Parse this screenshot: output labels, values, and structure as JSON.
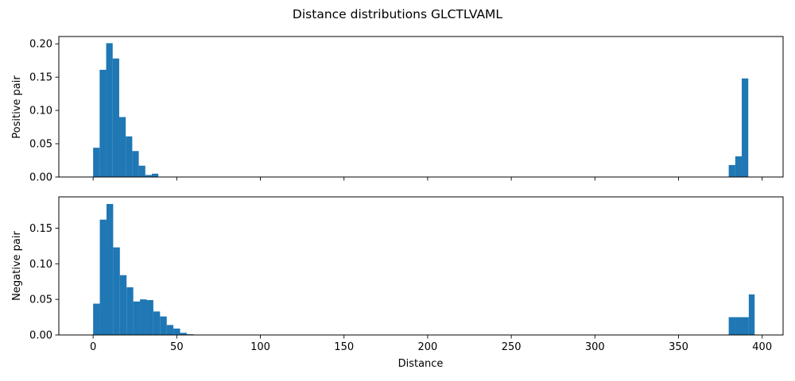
{
  "figure": {
    "title": "Distance distributions GLCTLVAML"
  },
  "chart_data": [
    {
      "type": "bar",
      "title": "",
      "xlabel": "",
      "ylabel": "Positive pair",
      "xlim": [
        -20.5,
        412.5
      ],
      "ylim": [
        0,
        0.211
      ],
      "xticks": [
        0,
        50,
        100,
        150,
        200,
        250,
        300,
        350,
        400
      ],
      "xtick_labels_visible": false,
      "yticks": [
        0.0,
        0.05,
        0.1,
        0.15,
        0.2
      ],
      "ytick_labels": [
        "0.00",
        "0.05",
        "0.10",
        "0.15",
        "0.20"
      ],
      "color": "#1f77b4",
      "bins": [
        {
          "x0": 0.0,
          "x1": 3.9,
          "value": 0.044
        },
        {
          "x0": 3.9,
          "x1": 7.8,
          "value": 0.161
        },
        {
          "x0": 7.8,
          "x1": 11.7,
          "value": 0.201
        },
        {
          "x0": 11.7,
          "x1": 15.6,
          "value": 0.178
        },
        {
          "x0": 15.6,
          "x1": 19.5,
          "value": 0.09
        },
        {
          "x0": 19.5,
          "x1": 23.4,
          "value": 0.061
        },
        {
          "x0": 23.4,
          "x1": 27.3,
          "value": 0.039
        },
        {
          "x0": 27.3,
          "x1": 31.2,
          "value": 0.017
        },
        {
          "x0": 31.2,
          "x1": 35.1,
          "value": 0.003
        },
        {
          "x0": 35.1,
          "x1": 39.0,
          "value": 0.005
        },
        {
          "x0": 380.0,
          "x1": 383.9,
          "value": 0.018
        },
        {
          "x0": 383.9,
          "x1": 387.8,
          "value": 0.031
        },
        {
          "x0": 387.8,
          "x1": 391.7,
          "value": 0.148
        }
      ]
    },
    {
      "type": "bar",
      "title": "",
      "xlabel": "Distance",
      "ylabel": "Negative pair",
      "xlim": [
        -20.5,
        412.5
      ],
      "ylim": [
        0,
        0.194
      ],
      "xticks": [
        0,
        50,
        100,
        150,
        200,
        250,
        300,
        350,
        400
      ],
      "xtick_labels": [
        "0",
        "50",
        "100",
        "150",
        "200",
        "250",
        "300",
        "350",
        "400"
      ],
      "yticks": [
        0.0,
        0.05,
        0.1,
        0.15
      ],
      "ytick_labels": [
        "0.00",
        "0.05",
        "0.10",
        "0.15"
      ],
      "color": "#1f77b4",
      "bins": [
        {
          "x0": 0.0,
          "x1": 4.0,
          "value": 0.044
        },
        {
          "x0": 4.0,
          "x1": 8.0,
          "value": 0.162
        },
        {
          "x0": 8.0,
          "x1": 12.0,
          "value": 0.184
        },
        {
          "x0": 12.0,
          "x1": 16.0,
          "value": 0.123
        },
        {
          "x0": 16.0,
          "x1": 20.0,
          "value": 0.084
        },
        {
          "x0": 20.0,
          "x1": 24.0,
          "value": 0.067
        },
        {
          "x0": 24.0,
          "x1": 28.0,
          "value": 0.047
        },
        {
          "x0": 28.0,
          "x1": 32.0,
          "value": 0.05
        },
        {
          "x0": 32.0,
          "x1": 36.0,
          "value": 0.049
        },
        {
          "x0": 36.0,
          "x1": 40.0,
          "value": 0.033
        },
        {
          "x0": 40.0,
          "x1": 44.0,
          "value": 0.026
        },
        {
          "x0": 44.0,
          "x1": 48.0,
          "value": 0.014
        },
        {
          "x0": 48.0,
          "x1": 52.0,
          "value": 0.009
        },
        {
          "x0": 52.0,
          "x1": 56.0,
          "value": 0.003
        },
        {
          "x0": 56.0,
          "x1": 60.0,
          "value": 0.001
        },
        {
          "x0": 380.0,
          "x1": 384.0,
          "value": 0.025
        },
        {
          "x0": 384.0,
          "x1": 388.0,
          "value": 0.025
        },
        {
          "x0": 388.0,
          "x1": 392.0,
          "value": 0.025
        },
        {
          "x0": 392.0,
          "x1": 395.5,
          "value": 0.057
        }
      ]
    }
  ]
}
